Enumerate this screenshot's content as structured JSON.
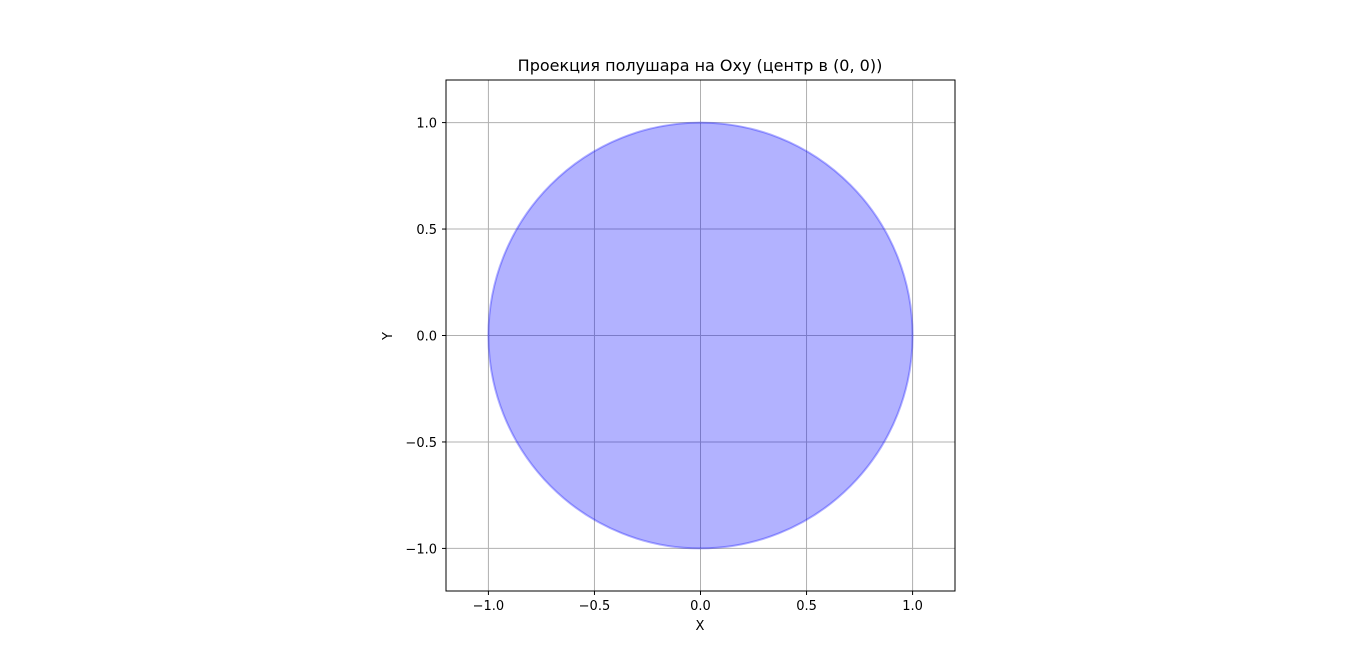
{
  "chart_data": {
    "type": "area",
    "title": "Проекция полушара на Oxy (центр в (0, 0))",
    "xlabel": "X",
    "ylabel": "Y",
    "xlim": [
      -1.2,
      1.2
    ],
    "ylim": [
      -1.2,
      1.2
    ],
    "xticks": [
      -1.0,
      -0.5,
      0.0,
      0.5,
      1.0
    ],
    "yticks": [
      -1.0,
      -0.5,
      0.0,
      0.5,
      1.0
    ],
    "xtick_labels": [
      "−1.0",
      "−0.5",
      "0.0",
      "0.5",
      "1.0"
    ],
    "ytick_labels": [
      "−1.0",
      "−0.5",
      "0.0",
      "0.5",
      "1.0"
    ],
    "grid": true,
    "shape": {
      "kind": "circle",
      "center": [
        0,
        0
      ],
      "radius": 1.0,
      "fill_color": "#0000ff",
      "fill_alpha": 0.3,
      "edge_color": "#0000ff",
      "edge_alpha": 0.3
    }
  }
}
